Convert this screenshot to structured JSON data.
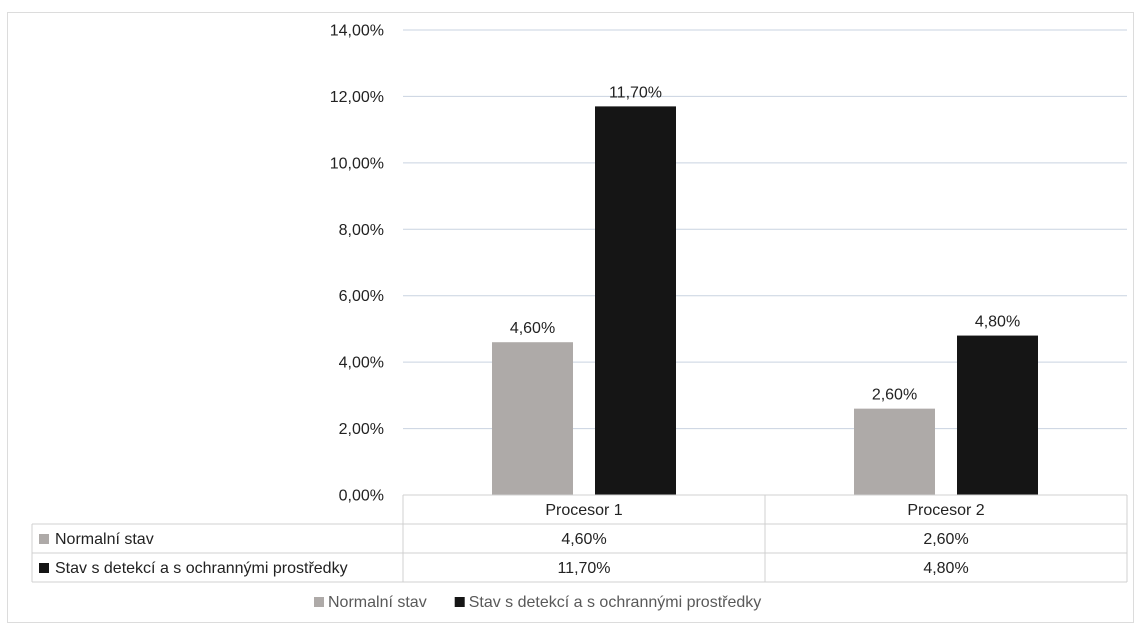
{
  "chart_data": {
    "type": "bar",
    "categories": [
      "Procesor 1",
      "Procesor 2"
    ],
    "series": [
      {
        "name": "Normalní stav",
        "values": [
          4.6,
          2.6
        ],
        "labels": [
          "4,60%",
          "2,60%"
        ],
        "color": "#aeaaa8"
      },
      {
        "name": "Stav s detekcí a s ochrannými prostředky",
        "values": [
          11.7,
          4.8
        ],
        "labels": [
          "11,70%",
          "4,80%"
        ],
        "color": "#151515"
      }
    ],
    "ylim": [
      0,
      14
    ],
    "yticks": [
      "0,00%",
      "2,00%",
      "4,00%",
      "6,00%",
      "8,00%",
      "10,00%",
      "12,00%",
      "14,00%"
    ],
    "ytick_values": [
      0,
      2,
      4,
      6,
      8,
      10,
      12,
      14
    ],
    "grid": true,
    "gridline_color": "#c9d3e0",
    "data_table": true,
    "legend_position": "bottom"
  }
}
